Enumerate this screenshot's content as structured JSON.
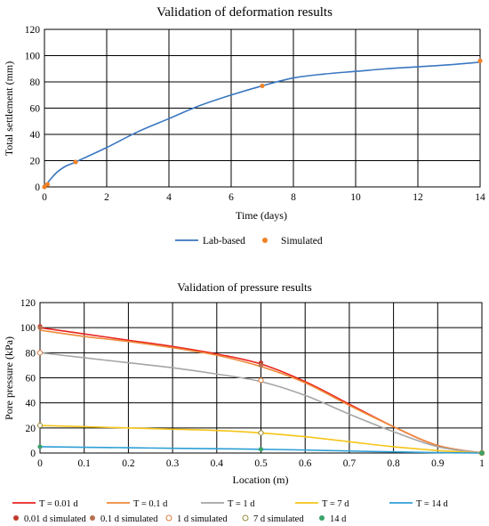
{
  "chart_data": [
    {
      "type": "line",
      "title": "Validation of deformation results",
      "xlabel": "Time (days)",
      "ylabel": "Total settlement (mm)",
      "xlim": [
        0,
        14
      ],
      "ylim": [
        0,
        120
      ],
      "xticks": [
        "0",
        "2",
        "4",
        "6",
        "8",
        "10",
        "12",
        "14"
      ],
      "yticks": [
        "0",
        "20",
        "40",
        "60",
        "80",
        "100",
        "120"
      ],
      "grid": true,
      "legend_position": "bottom",
      "series": [
        {
          "name": "Lab-based",
          "kind": "line",
          "color": "#3a77c0",
          "x": [
            0,
            0.05,
            0.1,
            0.2,
            0.35,
            0.5,
            0.7,
            1,
            2,
            3,
            4,
            5,
            6,
            7,
            8,
            9,
            10,
            11,
            12,
            13,
            14
          ],
          "y": [
            0,
            1,
            3,
            6,
            10,
            13,
            16,
            19,
            30,
            42,
            52,
            62,
            70,
            77,
            83,
            86,
            88,
            90,
            91.5,
            93,
            95
          ]
        },
        {
          "name": "Simulated",
          "kind": "scatter",
          "color": "#f08226",
          "x": [
            0,
            0.1,
            1,
            7,
            14
          ],
          "y": [
            0,
            2,
            19,
            77,
            96
          ]
        }
      ]
    },
    {
      "type": "line",
      "title": "Validation of pressure results",
      "xlabel": "Location (m)",
      "ylabel": "Pore pressure (kPa)",
      "xlim": [
        0,
        1
      ],
      "ylim": [
        0,
        120
      ],
      "xticks": [
        "0",
        "0.1",
        "0.2",
        "0.3",
        "0.4",
        "0.5",
        "0.6",
        "0.7",
        "0.8",
        "0.9",
        "1"
      ],
      "yticks": [
        "0",
        "20",
        "40",
        "60",
        "80",
        "100",
        "120"
      ],
      "grid": true,
      "legend_position": "bottom",
      "series": [
        {
          "name": "T = 0.01 d",
          "kind": "line",
          "color": "#e8231e",
          "x": [
            0,
            0.1,
            0.2,
            0.3,
            0.4,
            0.5,
            0.6,
            0.7,
            0.8,
            0.9,
            1
          ],
          "y": [
            100,
            95,
            90,
            85,
            79,
            71,
            57,
            39,
            21,
            6,
            0
          ]
        },
        {
          "name": "T = 0.1 d",
          "kind": "line",
          "color": "#ef8a3a",
          "x": [
            0,
            0.1,
            0.2,
            0.3,
            0.4,
            0.5,
            0.6,
            0.7,
            0.8,
            0.9,
            1
          ],
          "y": [
            98,
            93,
            89,
            84,
            78,
            69,
            56,
            38,
            21,
            6,
            0
          ]
        },
        {
          "name": "T = 1 d",
          "kind": "line",
          "color": "#a5a5a5",
          "x": [
            0,
            0.1,
            0.2,
            0.3,
            0.4,
            0.5,
            0.6,
            0.7,
            0.8,
            0.9,
            1
          ],
          "y": [
            80,
            76,
            72,
            68,
            63,
            57,
            46,
            31,
            17,
            5,
            0
          ]
        },
        {
          "name": "T = 7 d",
          "kind": "line",
          "color": "#f5c518",
          "x": [
            0,
            0.1,
            0.2,
            0.3,
            0.4,
            0.5,
            0.6,
            0.7,
            0.8,
            0.9,
            1
          ],
          "y": [
            22,
            21,
            20,
            19,
            18,
            16,
            13,
            9,
            5,
            2,
            0
          ]
        },
        {
          "name": "T = 14 d",
          "kind": "line",
          "color": "#2e9fd6",
          "x": [
            0,
            0.1,
            0.2,
            0.3,
            0.4,
            0.5,
            0.6,
            0.7,
            0.8,
            0.9,
            1
          ],
          "y": [
            5,
            4.6,
            4.2,
            3.8,
            3.4,
            3,
            2.4,
            1.6,
            0.9,
            0.3,
            0
          ]
        },
        {
          "name": "0.01 d simulated",
          "kind": "scatter",
          "color": "#c0392b",
          "open": false,
          "x": [
            0,
            0.5,
            1
          ],
          "y": [
            101,
            72,
            0
          ]
        },
        {
          "name": "0.1 d simulated",
          "kind": "scatter",
          "color": "#b7704f",
          "open": false,
          "x": [
            0,
            0.5,
            1
          ],
          "y": [
            100,
            70,
            0
          ]
        },
        {
          "name": "1 d simulated",
          "kind": "scatter",
          "color": "#e07b39",
          "open": true,
          "x": [
            0,
            0.5,
            1
          ],
          "y": [
            80,
            58,
            0
          ]
        },
        {
          "name": "7 d simulated",
          "kind": "scatter",
          "color": "#9a8a3a",
          "open": true,
          "x": [
            0,
            0.5,
            1
          ],
          "y": [
            22,
            16,
            0
          ]
        },
        {
          "name": "14 d",
          "kind": "scatter",
          "color": "#3aa36a",
          "open": false,
          "x": [
            0,
            0.5,
            1
          ],
          "y": [
            5,
            3,
            0
          ]
        }
      ]
    }
  ]
}
